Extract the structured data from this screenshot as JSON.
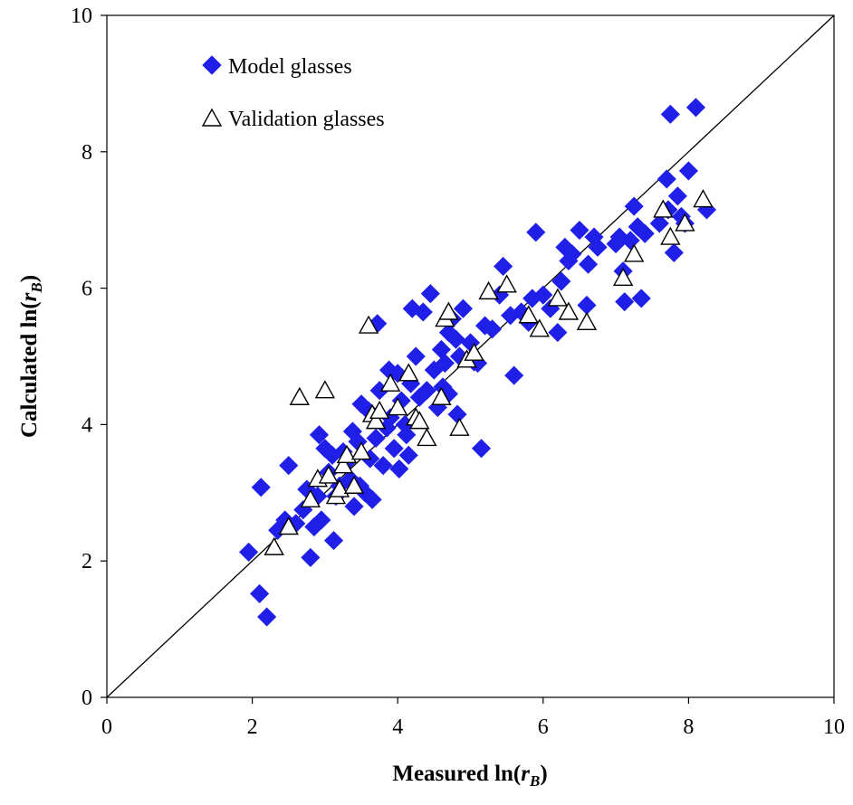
{
  "chart_data": {
    "type": "scatter",
    "xlabel": {
      "main": "Measured ln(",
      "var": "r",
      "sub": "B",
      "close": ")"
    },
    "ylabel": {
      "main": "Calculated ln(",
      "var": "r",
      "sub": "B",
      "close": ")"
    },
    "xlim": [
      0,
      10
    ],
    "ylim": [
      0,
      10
    ],
    "xticks": [
      "0",
      "2",
      "4",
      "6",
      "8",
      "10"
    ],
    "yticks": [
      "0",
      "2",
      "4",
      "6",
      "8",
      "10"
    ],
    "grid": false,
    "legend_position": "top-left",
    "reference_line": {
      "x": [
        0,
        10
      ],
      "y": [
        0,
        10
      ],
      "color": "#000000"
    },
    "series": [
      {
        "name": "Model glasses",
        "marker": "diamond",
        "color": "#1f1fe8",
        "points": [
          [
            1.95,
            2.13
          ],
          [
            2.1,
            1.52
          ],
          [
            2.2,
            1.18
          ],
          [
            2.12,
            3.08
          ],
          [
            2.35,
            2.45
          ],
          [
            2.45,
            2.6
          ],
          [
            2.5,
            3.4
          ],
          [
            2.6,
            2.55
          ],
          [
            2.7,
            2.75
          ],
          [
            2.75,
            3.05
          ],
          [
            2.8,
            2.05
          ],
          [
            2.85,
            2.5
          ],
          [
            2.9,
            2.95
          ],
          [
            2.92,
            3.85
          ],
          [
            2.95,
            2.6
          ],
          [
            3.0,
            3.65
          ],
          [
            3.05,
            3.3
          ],
          [
            3.1,
            3.55
          ],
          [
            3.12,
            2.3
          ],
          [
            3.15,
            2.95
          ],
          [
            3.2,
            3.1
          ],
          [
            3.25,
            3.6
          ],
          [
            3.3,
            3.45
          ],
          [
            3.35,
            3.2
          ],
          [
            3.38,
            3.9
          ],
          [
            3.4,
            2.8
          ],
          [
            3.45,
            3.75
          ],
          [
            3.5,
            4.3
          ],
          [
            3.55,
            3.0
          ],
          [
            3.6,
            4.2
          ],
          [
            3.62,
            3.5
          ],
          [
            3.65,
            2.9
          ],
          [
            3.7,
            3.8
          ],
          [
            3.72,
            5.48
          ],
          [
            3.75,
            4.5
          ],
          [
            3.8,
            3.4
          ],
          [
            3.85,
            3.95
          ],
          [
            3.88,
            4.8
          ],
          [
            3.9,
            4.1
          ],
          [
            3.95,
            3.65
          ],
          [
            4.0,
            4.75
          ],
          [
            4.02,
            3.35
          ],
          [
            4.05,
            4.35
          ],
          [
            4.1,
            4.0
          ],
          [
            4.15,
            3.55
          ],
          [
            4.18,
            4.6
          ],
          [
            4.2,
            5.7
          ],
          [
            4.25,
            5.0
          ],
          [
            4.3,
            4.4
          ],
          [
            4.35,
            5.65
          ],
          [
            4.4,
            4.5
          ],
          [
            4.45,
            5.92
          ],
          [
            4.5,
            4.8
          ],
          [
            4.55,
            4.25
          ],
          [
            4.6,
            5.1
          ],
          [
            4.62,
            4.55
          ],
          [
            4.65,
            4.9
          ],
          [
            4.7,
            5.35
          ],
          [
            4.75,
            5.55
          ],
          [
            4.8,
            5.25
          ],
          [
            4.82,
            4.15
          ],
          [
            4.85,
            5.0
          ],
          [
            4.9,
            5.7
          ],
          [
            5.0,
            5.2
          ],
          [
            5.1,
            4.9
          ],
          [
            5.15,
            3.65
          ],
          [
            5.2,
            5.45
          ],
          [
            5.3,
            5.4
          ],
          [
            5.4,
            5.9
          ],
          [
            5.45,
            6.32
          ],
          [
            5.55,
            5.6
          ],
          [
            5.6,
            4.72
          ],
          [
            5.7,
            5.65
          ],
          [
            5.8,
            5.5
          ],
          [
            5.85,
            5.85
          ],
          [
            5.9,
            6.82
          ],
          [
            6.0,
            5.9
          ],
          [
            6.1,
            5.7
          ],
          [
            6.2,
            5.35
          ],
          [
            6.25,
            6.1
          ],
          [
            6.3,
            6.6
          ],
          [
            6.35,
            6.4
          ],
          [
            6.4,
            6.5
          ],
          [
            6.5,
            6.85
          ],
          [
            6.6,
            5.75
          ],
          [
            6.62,
            6.35
          ],
          [
            6.7,
            6.75
          ],
          [
            6.75,
            6.6
          ],
          [
            7.0,
            6.65
          ],
          [
            7.05,
            6.75
          ],
          [
            7.1,
            6.25
          ],
          [
            7.12,
            5.8
          ],
          [
            7.2,
            6.7
          ],
          [
            7.25,
            7.2
          ],
          [
            7.3,
            6.9
          ],
          [
            7.35,
            5.85
          ],
          [
            7.4,
            6.8
          ],
          [
            7.7,
            7.6
          ],
          [
            7.75,
            8.55
          ],
          [
            7.8,
            6.52
          ],
          [
            7.85,
            7.35
          ],
          [
            7.9,
            7.05
          ],
          [
            7.95,
            6.95
          ],
          [
            8.0,
            7.72
          ],
          [
            8.1,
            8.65
          ],
          [
            8.25,
            7.15
          ],
          [
            7.6,
            6.95
          ],
          [
            7.72,
            7.15
          ],
          [
            4.12,
            3.85
          ],
          [
            3.48,
            3.1
          ],
          [
            4.7,
            4.45
          ],
          [
            5.05,
            4.92
          ]
        ]
      },
      {
        "name": "Validation glasses",
        "marker": "triangle",
        "color": "#000000",
        "points": [
          [
            2.3,
            2.2
          ],
          [
            2.5,
            2.5
          ],
          [
            2.65,
            4.4
          ],
          [
            2.8,
            2.9
          ],
          [
            2.9,
            3.2
          ],
          [
            3.0,
            4.5
          ],
          [
            3.05,
            3.25
          ],
          [
            3.15,
            2.95
          ],
          [
            3.2,
            3.05
          ],
          [
            3.25,
            3.4
          ],
          [
            3.3,
            3.55
          ],
          [
            3.4,
            3.1
          ],
          [
            3.5,
            3.6
          ],
          [
            3.6,
            5.45
          ],
          [
            3.65,
            4.15
          ],
          [
            3.7,
            4.05
          ],
          [
            3.75,
            4.2
          ],
          [
            3.9,
            4.6
          ],
          [
            4.0,
            4.25
          ],
          [
            4.15,
            4.75
          ],
          [
            4.25,
            4.1
          ],
          [
            4.3,
            4.05
          ],
          [
            4.4,
            3.8
          ],
          [
            4.6,
            4.4
          ],
          [
            4.65,
            5.55
          ],
          [
            4.7,
            5.65
          ],
          [
            4.85,
            3.95
          ],
          [
            4.95,
            4.95
          ],
          [
            5.05,
            5.05
          ],
          [
            5.25,
            5.95
          ],
          [
            5.5,
            6.05
          ],
          [
            5.8,
            5.6
          ],
          [
            5.95,
            5.4
          ],
          [
            6.2,
            5.85
          ],
          [
            6.35,
            5.65
          ],
          [
            6.6,
            5.5
          ],
          [
            7.1,
            6.15
          ],
          [
            7.25,
            6.5
          ],
          [
            7.65,
            7.15
          ],
          [
            7.75,
            6.75
          ],
          [
            7.95,
            6.95
          ],
          [
            8.2,
            7.3
          ]
        ]
      }
    ]
  }
}
